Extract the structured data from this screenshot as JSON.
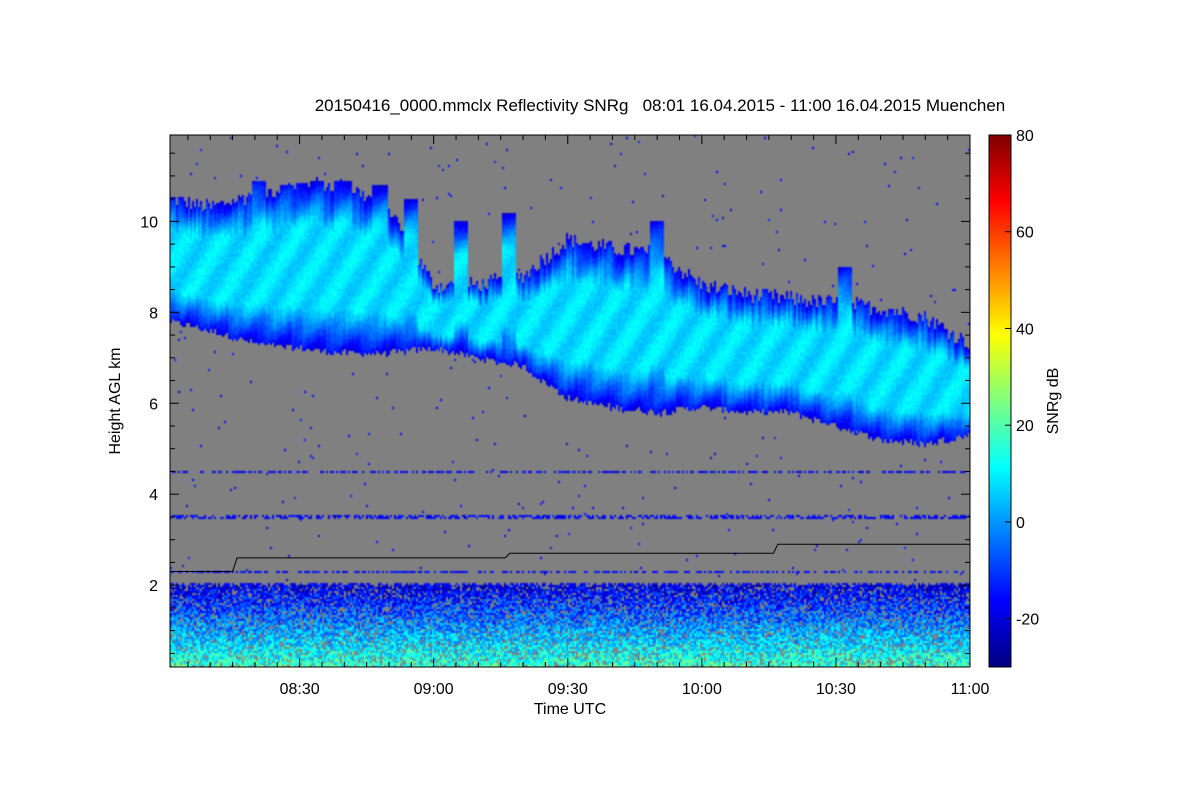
{
  "chart_data": {
    "type": "heatmap",
    "title": "20150416_0000.mmclx Reflectivity SNRg   08:01 16.04.2015 - 11:00 16.04.2015 Muenchen",
    "xlabel": "Time UTC",
    "ylabel": "Height AGL km",
    "colorbar_label": "SNRg dB",
    "x_range_minutes_utc": [
      481,
      660
    ],
    "y_range_km": [
      0.2,
      11.9
    ],
    "x_ticks": [
      {
        "minute": 510,
        "label": "08:30"
      },
      {
        "minute": 540,
        "label": "09:00"
      },
      {
        "minute": 570,
        "label": "09:30"
      },
      {
        "minute": 600,
        "label": "10:00"
      },
      {
        "minute": 630,
        "label": "10:30"
      },
      {
        "minute": 660,
        "label": "11:00"
      }
    ],
    "y_ticks": [
      {
        "value": 2,
        "label": "2"
      },
      {
        "value": 4,
        "label": "4"
      },
      {
        "value": 6,
        "label": "6"
      },
      {
        "value": 8,
        "label": "8"
      },
      {
        "value": 10,
        "label": "10"
      }
    ],
    "colorbar_range": [
      -30,
      80
    ],
    "colorbar_ticks": [
      {
        "value": -20,
        "label": "-20"
      },
      {
        "value": 0,
        "label": "0"
      },
      {
        "value": 20,
        "label": "20"
      },
      {
        "value": 40,
        "label": "40"
      },
      {
        "value": 60,
        "label": "60"
      },
      {
        "value": 80,
        "label": "80"
      }
    ],
    "colormap": [
      "#00007f",
      "#0000ff",
      "#007fff",
      "#00ffff",
      "#7fff7f",
      "#ffff00",
      "#ff7f00",
      "#ff0000",
      "#7f0000"
    ],
    "background_color": "#808080",
    "cloud_layer": {
      "minutes": [
        481,
        490,
        500,
        510,
        520,
        530,
        540,
        550,
        560,
        570,
        580,
        590,
        600,
        610,
        620,
        630,
        640,
        650,
        660
      ],
      "top_km": [
        10.5,
        10.3,
        10.6,
        10.8,
        10.8,
        10.3,
        8.6,
        8.6,
        8.8,
        9.6,
        9.4,
        9.3,
        8.6,
        8.4,
        8.3,
        8.2,
        8.1,
        7.9,
        7.3
      ],
      "base_km": [
        7.8,
        7.6,
        7.3,
        7.2,
        7.1,
        7.1,
        7.2,
        7.0,
        6.8,
        6.1,
        5.9,
        5.8,
        5.9,
        5.8,
        5.8,
        5.5,
        5.2,
        5.1,
        5.3
      ],
      "core_snr_db": 8
    },
    "fall_streaks_top_km": [
      {
        "minute": 501,
        "top_km": 10.9
      },
      {
        "minute": 507,
        "top_km": 10.8
      },
      {
        "minute": 514,
        "top_km": 10.9
      },
      {
        "minute": 520,
        "top_km": 10.9
      },
      {
        "minute": 528,
        "top_km": 10.8
      },
      {
        "minute": 535,
        "top_km": 10.5
      },
      {
        "minute": 546,
        "top_km": 10.0
      },
      {
        "minute": 557,
        "top_km": 10.2
      },
      {
        "minute": 590,
        "top_km": 10.0
      },
      {
        "minute": 632,
        "top_km": 9.0
      }
    ],
    "clutter_layer": {
      "top_km": 2.0,
      "base_km": 0.2,
      "surface_snr_db": 20
    },
    "horizontal_lines_km": [
      4.5,
      3.5,
      2.3,
      2.0
    ],
    "boundary_layer_line": {
      "minutes": [
        481,
        495,
        496,
        556,
        557,
        616,
        617,
        660
      ],
      "height_km": [
        2.3,
        2.3,
        2.6,
        2.6,
        2.7,
        2.7,
        2.9,
        2.9
      ]
    }
  }
}
